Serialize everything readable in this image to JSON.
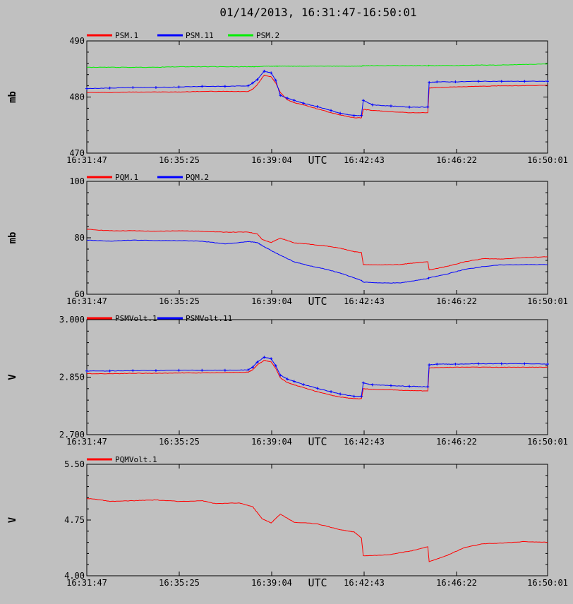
{
  "title": "01/14/2013, 16:31:47-16:50:01",
  "x_axis": {
    "label": "UTC",
    "ticks": [
      "16:31:47",
      "16:35:25",
      "16:39:04",
      "16:42:43",
      "16:46:22",
      "16:50:01"
    ]
  },
  "chart_data": [
    {
      "type": "line",
      "ylabel": "mb",
      "ylim": [
        470,
        490
      ],
      "yticks": [
        "470",
        "480",
        "490"
      ],
      "x": [
        0,
        0.05,
        0.1,
        0.15,
        0.2,
        0.25,
        0.3,
        0.35,
        0.36,
        0.37,
        0.385,
        0.4,
        0.41,
        0.42,
        0.435,
        0.45,
        0.47,
        0.5,
        0.53,
        0.55,
        0.58,
        0.596,
        0.6,
        0.62,
        0.66,
        0.7,
        0.74,
        0.743,
        0.76,
        0.8,
        0.85,
        0.9,
        0.95,
        1.0
      ],
      "series": [
        {
          "name": "PSM.1",
          "color": "#ff0000",
          "marker": "none",
          "values": [
            480.8,
            480.8,
            480.9,
            480.9,
            480.9,
            481.0,
            481.0,
            481.0,
            481.4,
            482.2,
            483.9,
            483.6,
            482.5,
            480.8,
            479.5,
            479.0,
            478.6,
            477.9,
            477.2,
            476.8,
            476.3,
            476.3,
            477.8,
            477.6,
            477.4,
            477.2,
            477.2,
            481.6,
            481.7,
            481.8,
            481.9,
            482.0,
            482.0,
            482.1
          ]
        },
        {
          "name": "PSM.11",
          "color": "#0000ff",
          "marker": "plus",
          "values": [
            481.5,
            481.6,
            481.7,
            481.7,
            481.8,
            481.9,
            481.9,
            482.0,
            482.5,
            483.1,
            484.6,
            484.3,
            483.0,
            480.3,
            479.8,
            479.4,
            478.9,
            478.3,
            477.6,
            477.1,
            476.7,
            476.7,
            479.4,
            478.6,
            478.4,
            478.2,
            478.2,
            482.6,
            482.7,
            482.7,
            482.8,
            482.8,
            482.8,
            482.8
          ]
        },
        {
          "name": "PSM.2",
          "color": "#00ee00",
          "marker": "none",
          "values": [
            485.3,
            485.3,
            485.3,
            485.3,
            485.4,
            485.4,
            485.4,
            485.4,
            485.4,
            485.4,
            485.5,
            485.5,
            485.5,
            485.5,
            485.5,
            485.5,
            485.5,
            485.5,
            485.5,
            485.5,
            485.5,
            485.5,
            485.6,
            485.6,
            485.6,
            485.6,
            485.6,
            485.6,
            485.6,
            485.6,
            485.7,
            485.7,
            485.8,
            485.9
          ]
        }
      ]
    },
    {
      "type": "line",
      "ylabel": "mb",
      "ylim": [
        60,
        100
      ],
      "yticks": [
        "60",
        "80",
        "100"
      ],
      "x": [
        0,
        0.05,
        0.1,
        0.15,
        0.2,
        0.25,
        0.3,
        0.35,
        0.37,
        0.38,
        0.4,
        0.42,
        0.45,
        0.48,
        0.52,
        0.55,
        0.58,
        0.596,
        0.6,
        0.64,
        0.68,
        0.7,
        0.74,
        0.743,
        0.78,
        0.82,
        0.86,
        0.9,
        0.95,
        1.0
      ],
      "series": [
        {
          "name": "PQM.1",
          "color": "#ff0000",
          "marker": "none",
          "values": [
            83.0,
            82.5,
            82.5,
            82.3,
            82.5,
            82.3,
            82.0,
            82.0,
            81.4,
            79.5,
            78.3,
            79.9,
            78.2,
            77.8,
            77.1,
            76.3,
            75.1,
            74.8,
            70.5,
            70.4,
            70.5,
            70.9,
            71.5,
            68.6,
            69.8,
            71.5,
            72.6,
            72.5,
            73.0,
            73.3
          ]
        },
        {
          "name": "PQM.2",
          "color": "#0000ff",
          "marker": "none",
          "values": [
            79.2,
            78.8,
            79.2,
            79.0,
            79.0,
            78.8,
            77.8,
            78.7,
            78.3,
            77.3,
            75.5,
            73.8,
            71.5,
            70.2,
            68.8,
            67.5,
            65.8,
            64.9,
            64.3,
            64.0,
            64.0,
            64.5,
            65.6,
            65.8,
            67.1,
            68.8,
            69.8,
            70.4,
            70.5,
            70.5
          ]
        }
      ]
    },
    {
      "type": "line",
      "ylabel": "V",
      "ylim": [
        2.7,
        3.0
      ],
      "yticks": [
        "2.700",
        "2.850",
        "3.000"
      ],
      "x": [
        0,
        0.05,
        0.1,
        0.15,
        0.2,
        0.25,
        0.3,
        0.35,
        0.36,
        0.37,
        0.385,
        0.4,
        0.41,
        0.42,
        0.435,
        0.45,
        0.47,
        0.5,
        0.53,
        0.55,
        0.58,
        0.596,
        0.6,
        0.62,
        0.66,
        0.7,
        0.74,
        0.743,
        0.76,
        0.8,
        0.85,
        0.9,
        0.95,
        1.0
      ],
      "series": [
        {
          "name": "PSMVolt.1",
          "color": "#ff0000",
          "marker": "none",
          "values": [
            2.859,
            2.859,
            2.86,
            2.86,
            2.861,
            2.861,
            2.862,
            2.863,
            2.869,
            2.882,
            2.894,
            2.89,
            2.873,
            2.848,
            2.836,
            2.83,
            2.823,
            2.812,
            2.803,
            2.798,
            2.794,
            2.794,
            2.82,
            2.818,
            2.817,
            2.815,
            2.814,
            2.874,
            2.875,
            2.876,
            2.876,
            2.876,
            2.876,
            2.876
          ]
        },
        {
          "name": "PSMVolt.11",
          "color": "#0000ff",
          "marker": "plus",
          "values": [
            2.866,
            2.866,
            2.867,
            2.867,
            2.868,
            2.868,
            2.868,
            2.869,
            2.876,
            2.889,
            2.902,
            2.898,
            2.88,
            2.855,
            2.845,
            2.839,
            2.831,
            2.821,
            2.812,
            2.806,
            2.8,
            2.8,
            2.835,
            2.83,
            2.828,
            2.826,
            2.825,
            2.882,
            2.884,
            2.884,
            2.885,
            2.885,
            2.885,
            2.884
          ]
        }
      ]
    },
    {
      "type": "line",
      "ylabel": "V",
      "ylim": [
        4.0,
        5.5
      ],
      "yticks": [
        "4.00",
        "4.75",
        "5.50"
      ],
      "x": [
        0,
        0.02,
        0.05,
        0.1,
        0.15,
        0.2,
        0.25,
        0.28,
        0.33,
        0.36,
        0.38,
        0.4,
        0.42,
        0.45,
        0.5,
        0.55,
        0.58,
        0.596,
        0.6,
        0.65,
        0.7,
        0.74,
        0.743,
        0.78,
        0.82,
        0.86,
        0.9,
        0.95,
        1.0
      ],
      "series": [
        {
          "name": "PQMVolt.1",
          "color": "#ff0000",
          "marker": "none",
          "values": [
            5.04,
            5.03,
            5.0,
            5.01,
            5.02,
            5.0,
            5.01,
            4.97,
            4.98,
            4.93,
            4.77,
            4.71,
            4.83,
            4.72,
            4.7,
            4.62,
            4.59,
            4.51,
            4.27,
            4.28,
            4.33,
            4.39,
            4.19,
            4.27,
            4.38,
            4.43,
            4.44,
            4.46,
            4.45
          ]
        }
      ]
    }
  ]
}
